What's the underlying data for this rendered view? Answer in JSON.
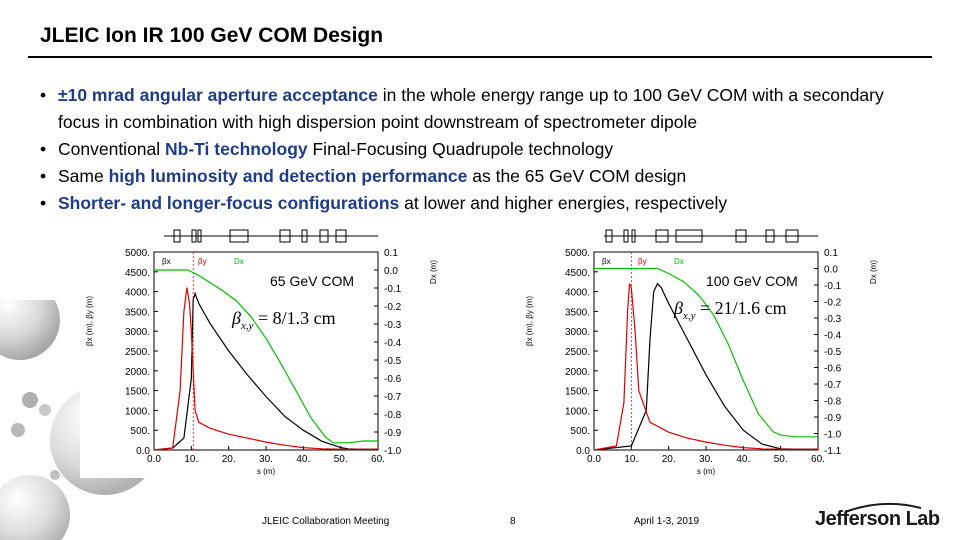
{
  "slide": {
    "title": "JLEIC Ion IR 100 GeV COM Design",
    "bullets": [
      {
        "pre": "",
        "hl": "±10 mrad angular aperture acceptance",
        "post": " in the whole energy range up to 100 GeV COM with a secondary focus in combination with high dispersion point downstream of spectrometer dipole"
      },
      {
        "pre": "Conventional ",
        "hl": "Nb-Ti technology",
        "post": " Final-Focusing Quadrupole technology"
      },
      {
        "pre": "Same ",
        "hl": "high luminosity and detection performance",
        "post": " as the 65 GeV COM design"
      },
      {
        "pre": "",
        "hl": "Shorter- and longer-focus configurations",
        "post": " at lower and higher energies, respectively"
      }
    ]
  },
  "footer": {
    "meeting": "JLEIC Collaboration Meeting",
    "page": "8",
    "date": "April 1-3, 2019",
    "logo": "Jefferson Lab"
  },
  "colors": {
    "beta_x": "#000000",
    "beta_y": "#e00000",
    "dispersion": "#00c000",
    "highlight": "#1f3c88"
  },
  "chart_data": [
    {
      "type": "line",
      "title": "65 GeV COM",
      "annotation": "β*x,y = 8/1.3 cm",
      "annotation_symbol": "β",
      "annotation_sub": "x,y",
      "annotation_value": "= 8/1.3 cm",
      "xlabel": "s (m)",
      "ylabel": "βx (m), βy (m)",
      "y2label": "Dx (m)",
      "legend": [
        "βx",
        "βy",
        "Dx"
      ],
      "xlim": [
        0,
        60
      ],
      "ylim": [
        0,
        5000
      ],
      "y2lim": [
        -1.0,
        0.1
      ],
      "xticks": [
        "0.0",
        "10.",
        "20.",
        "30.",
        "40.",
        "50.",
        "60."
      ],
      "yticks": [
        "0.0",
        "500.",
        "1000.",
        "1500.",
        "2000.",
        "2500.",
        "3000.",
        "3500.",
        "4000.",
        "4500.",
        "5000."
      ],
      "y2ticks": [
        "0.1",
        "0.0",
        "-0.1",
        "-0.2",
        "-0.3",
        "-0.4",
        "-0.5",
        "-0.6",
        "-0.7",
        "-0.8",
        "-0.9",
        "-1.0"
      ],
      "series": [
        {
          "name": "βx",
          "x": [
            0,
            5,
            8,
            10,
            10.5,
            11,
            12,
            15,
            20,
            25,
            30,
            35,
            40,
            45,
            50,
            52,
            55,
            60
          ],
          "values": [
            0,
            50,
            300,
            1800,
            3800,
            3950,
            3700,
            3200,
            2500,
            1900,
            1350,
            850,
            500,
            220,
            60,
            30,
            20,
            20
          ]
        },
        {
          "name": "βy",
          "x": [
            0,
            5,
            7,
            8,
            8.8,
            9.5,
            10,
            11,
            12,
            15,
            20,
            25,
            30,
            35,
            40,
            45,
            50,
            55,
            60
          ],
          "values": [
            0,
            50,
            1500,
            3500,
            4100,
            3700,
            3000,
            1000,
            700,
            550,
            400,
            300,
            200,
            120,
            60,
            30,
            20,
            20,
            20
          ]
        },
        {
          "name": "Dx",
          "x": [
            0,
            9,
            12,
            15,
            18,
            22,
            26,
            30,
            34,
            38,
            42,
            46,
            48,
            52,
            56,
            60
          ],
          "values": [
            0.0,
            0.0,
            -0.03,
            -0.07,
            -0.11,
            -0.17,
            -0.26,
            -0.38,
            -0.52,
            -0.67,
            -0.82,
            -0.93,
            -0.96,
            -0.96,
            -0.95,
            -0.95
          ]
        }
      ]
    },
    {
      "type": "line",
      "title": "100 GeV COM",
      "annotation": "β*x,y = 21/1.6 cm",
      "annotation_symbol": "β",
      "annotation_sub": "x,y",
      "annotation_value": "= 21/1.6 cm",
      "xlabel": "s (m)",
      "ylabel": "βx (m), βy (m)",
      "y2label": "Dx (m)",
      "legend": [
        "βx",
        "βy",
        "Dx"
      ],
      "xlim": [
        0,
        60
      ],
      "ylim": [
        0,
        5000
      ],
      "y2lim": [
        -1.1,
        0.1
      ],
      "xticks": [
        "0.0",
        "10.",
        "20.",
        "30.",
        "40.",
        "50.",
        "60."
      ],
      "yticks": [
        "0.0",
        "500.",
        "1000.",
        "1500.",
        "2000.",
        "2500.",
        "3000.",
        "3500.",
        "4000.",
        "4500.",
        "5000."
      ],
      "y2ticks": [
        "0.1",
        "0.0",
        "-0.1",
        "-0.2",
        "-0.3",
        "-0.4",
        "-0.5",
        "-0.6",
        "-0.7",
        "-0.8",
        "-0.9",
        "-1.0",
        "-1.1"
      ],
      "series": [
        {
          "name": "βx",
          "x": [
            0,
            10,
            14,
            15,
            16,
            17,
            18,
            20,
            25,
            30,
            35,
            40,
            45,
            50,
            55,
            60
          ],
          "values": [
            0,
            100,
            1000,
            2800,
            4000,
            4200,
            4100,
            3700,
            2800,
            1900,
            1100,
            500,
            150,
            30,
            20,
            20
          ]
        },
        {
          "name": "βy",
          "x": [
            0,
            6,
            8,
            9,
            9.5,
            10,
            11,
            12,
            15,
            20,
            25,
            30,
            35,
            40,
            45,
            50,
            60
          ],
          "values": [
            0,
            100,
            1200,
            3500,
            4200,
            4100,
            3000,
            1500,
            700,
            450,
            300,
            200,
            120,
            60,
            30,
            20,
            20
          ]
        },
        {
          "name": "Dx",
          "x": [
            0,
            17,
            20,
            24,
            28,
            32,
            36,
            40,
            44,
            48,
            50,
            54,
            58,
            60
          ],
          "values": [
            0.0,
            0.0,
            -0.03,
            -0.08,
            -0.16,
            -0.28,
            -0.46,
            -0.68,
            -0.88,
            -0.99,
            -1.01,
            -1.02,
            -1.02,
            -1.02
          ]
        }
      ]
    }
  ]
}
